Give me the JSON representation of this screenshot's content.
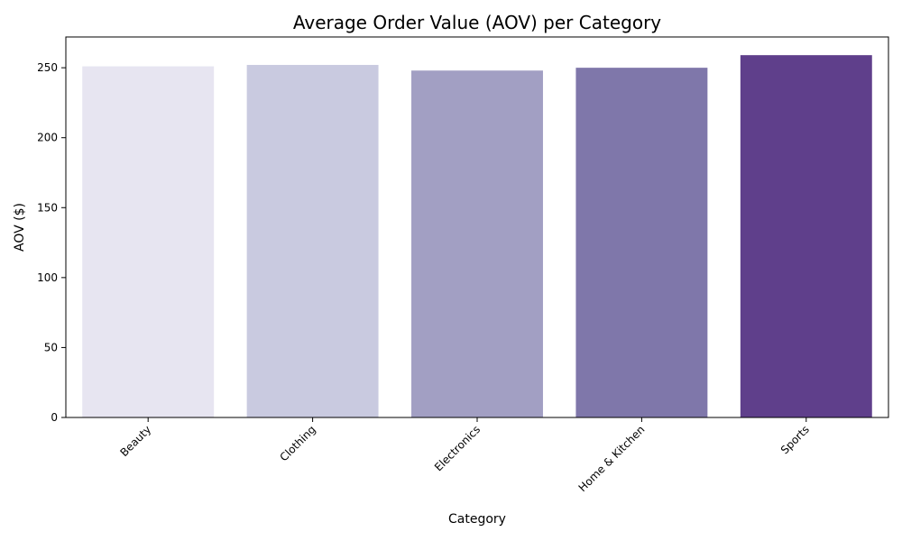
{
  "chart_data": {
    "type": "bar",
    "title": "Average Order Value (AOV) per Category",
    "xlabel": "Category",
    "ylabel": "AOV ($)",
    "categories": [
      "Beauty",
      "Clothing",
      "Electronics",
      "Home & Kitchen",
      "Sports"
    ],
    "values": [
      251,
      252,
      248,
      250,
      259
    ],
    "colors": [
      "#e7e5f1",
      "#c9cae0",
      "#a29fc3",
      "#7f77aa",
      "#5f3f8b"
    ],
    "ylim": [
      0,
      272
    ],
    "yticks": [
      0,
      50,
      100,
      150,
      200,
      250
    ],
    "grid": false,
    "legend": "none"
  }
}
